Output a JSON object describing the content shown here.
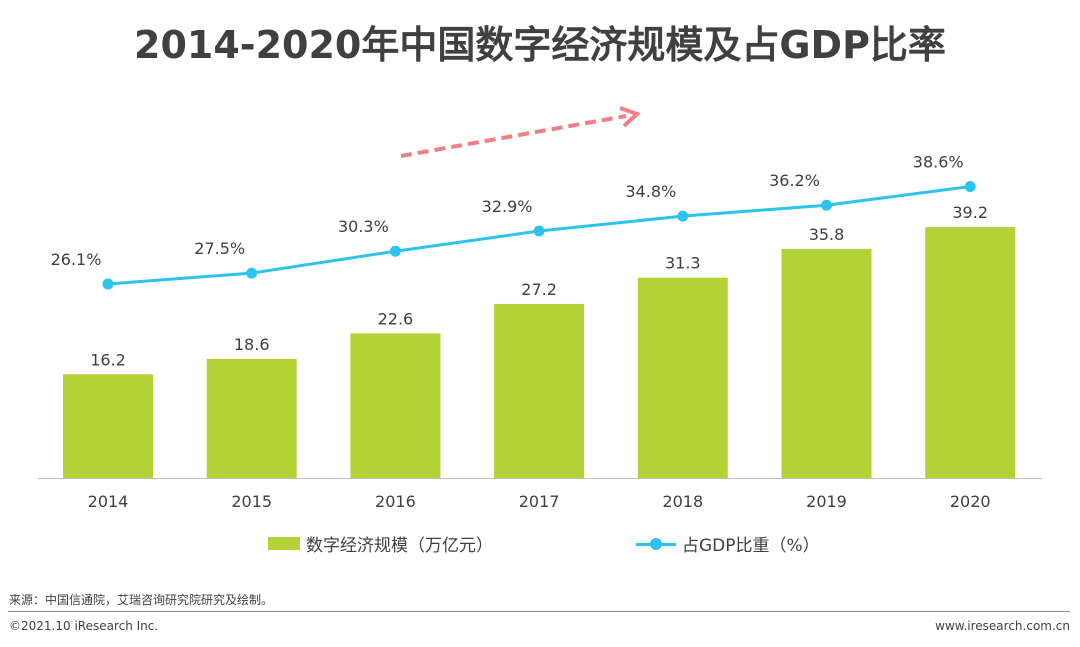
{
  "title": "2014-2020年中国数字经济规模及占GDP比率",
  "chart_data": {
    "type": "bar",
    "categories": [
      "2014",
      "2015",
      "2016",
      "2017",
      "2018",
      "2019",
      "2020"
    ],
    "series": [
      {
        "name": "数字经济规模（万亿元）",
        "type": "bar",
        "values": [
          16.2,
          18.6,
          22.6,
          27.2,
          31.3,
          35.8,
          39.2
        ],
        "labels": [
          "16.2",
          "18.6",
          "22.6",
          "27.2",
          "31.3",
          "35.8",
          "39.2"
        ],
        "color": "#b2d235"
      },
      {
        "name": "占GDP比重（%）",
        "type": "line",
        "values": [
          26.1,
          27.5,
          30.3,
          32.9,
          34.8,
          36.2,
          38.6
        ],
        "labels": [
          "26.1%",
          "27.5%",
          "30.3%",
          "32.9%",
          "34.8%",
          "36.2%",
          "38.6%"
        ],
        "color": "#2cc3ee"
      }
    ],
    "trend_arrow_color": "#ef7f85",
    "legend_position": "bottom",
    "grid": false
  },
  "legend": {
    "bar_label": "数字经济规模（万亿元）",
    "line_label": "占GDP比重（%）"
  },
  "source": "来源：中国信通院，艾瑞咨询研究院研究及绘制。",
  "footer": {
    "copyright": "©2021.10 iResearch Inc.",
    "website": "www.iresearch.com.cn"
  }
}
